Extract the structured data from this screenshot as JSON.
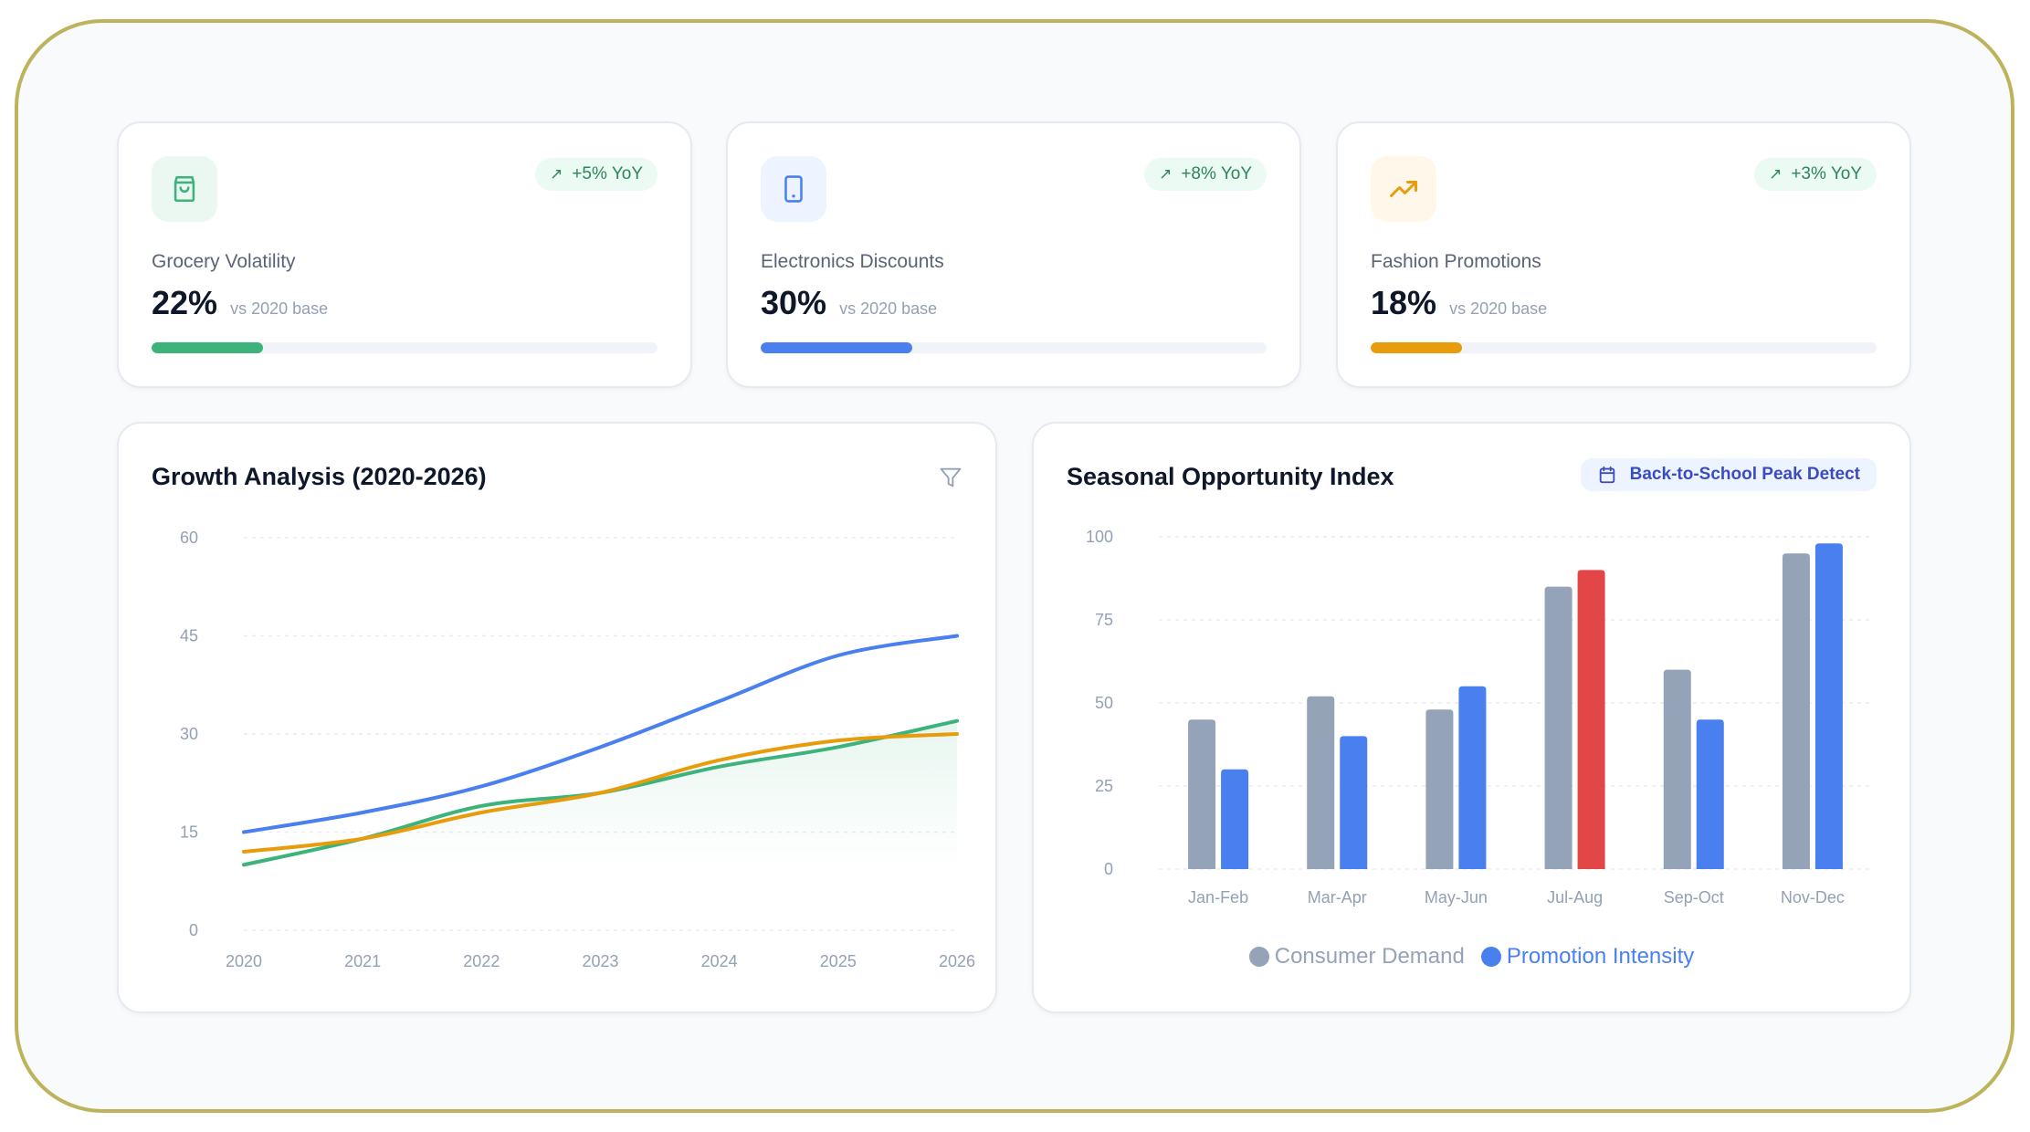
{
  "colors": {
    "green": "#3cb37a",
    "blue": "#4a7ff0",
    "orange": "#e89c0c",
    "gray_bar": "#94a3b8",
    "red_highlight": "#e24646",
    "axis_text": "#94a0b4",
    "grid": "#e8ecf3"
  },
  "kpis": [
    {
      "icon": "shopping-bag-icon",
      "icon_bg": "#eaf8f1",
      "icon_color": "#3cb37a",
      "badge": "+5% YoY",
      "label": "Grocery Volatility",
      "value": "22%",
      "sub": "vs 2020 base",
      "progress": 22,
      "bar_color": "#3cb37a"
    },
    {
      "icon": "smartphone-icon",
      "icon_bg": "#eef4ff",
      "icon_color": "#4a7ff0",
      "badge": "+8% YoY",
      "label": "Electronics Discounts",
      "value": "30%",
      "sub": "vs 2020 base",
      "progress": 30,
      "bar_color": "#4a7ff0"
    },
    {
      "icon": "trending-up-icon",
      "icon_bg": "#fff7ea",
      "icon_color": "#e89c0c",
      "badge": "+3% YoY",
      "label": "Fashion Promotions",
      "value": "18%",
      "sub": "vs 2020 base",
      "progress": 18,
      "bar_color": "#e89c0c"
    }
  ],
  "growth_panel": {
    "title": "Growth Analysis (2020-2026)",
    "filter_icon": "filter-icon"
  },
  "seasonal_panel": {
    "title": "Seasonal Opportunity Index",
    "badge": "Back-to-School Peak Detect",
    "badge_icon": "calendar-icon"
  },
  "chart_data": [
    {
      "type": "line",
      "title": "Growth Analysis (2020-2026)",
      "xlabel": "",
      "ylabel": "",
      "x": [
        "2020",
        "2021",
        "2022",
        "2023",
        "2024",
        "2025",
        "2026"
      ],
      "yticks": [
        0,
        15,
        30,
        45,
        60
      ],
      "ylim": [
        0,
        60
      ],
      "grid": true,
      "legend": "none",
      "series": [
        {
          "name": "Electronics Discounts",
          "color": "#4a7ff0",
          "values": [
            15,
            18,
            22,
            28,
            35,
            42,
            45
          ],
          "area": false
        },
        {
          "name": "Grocery Volatility",
          "color": "#3cb37a",
          "values": [
            10,
            14,
            19,
            21,
            25,
            28,
            32
          ],
          "area": true
        },
        {
          "name": "Fashion Promotions",
          "color": "#e89c0c",
          "values": [
            12,
            14,
            18,
            21,
            26,
            29,
            30
          ],
          "area": false
        }
      ]
    },
    {
      "type": "bar",
      "title": "Seasonal Opportunity Index",
      "xlabel": "",
      "ylabel": "",
      "categories": [
        "Jan-Feb",
        "Mar-Apr",
        "May-Jun",
        "Jul-Aug",
        "Sep-Oct",
        "Nov-Dec"
      ],
      "yticks": [
        0,
        25,
        50,
        75,
        100
      ],
      "ylim": [
        0,
        100
      ],
      "grid": true,
      "legend": "bottom",
      "series": [
        {
          "name": "Consumer Demand",
          "color": "#94a3b8",
          "values": [
            45,
            52,
            48,
            85,
            60,
            95
          ]
        },
        {
          "name": "Promotion Intensity",
          "color": "#4a7ff0",
          "values": [
            30,
            40,
            55,
            90,
            45,
            98
          ],
          "highlight_index": 3,
          "highlight_color": "#e24646"
        }
      ]
    }
  ]
}
